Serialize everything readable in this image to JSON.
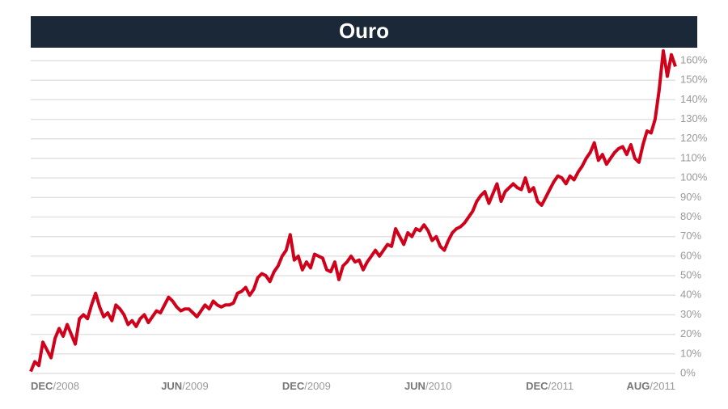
{
  "chart_data": {
    "type": "line",
    "title": "Ouro",
    "series": [
      {
        "color": "#d0021b",
        "values": [
          1,
          6,
          4,
          16,
          12,
          8,
          18,
          23,
          19,
          25,
          20,
          15,
          28,
          30,
          28,
          35,
          41,
          34,
          29,
          31,
          27,
          35,
          33,
          30,
          25,
          27,
          24,
          28,
          30,
          26,
          29,
          32,
          31,
          35,
          39,
          37,
          34,
          32,
          33,
          33,
          31,
          29,
          32,
          35,
          33,
          37,
          35,
          34,
          35,
          35,
          36,
          41,
          42,
          44,
          40,
          43,
          49,
          51,
          50,
          47,
          52,
          55,
          60,
          63,
          71,
          58,
          60,
          53,
          57,
          54,
          61,
          60,
          59,
          53,
          52,
          57,
          48,
          55,
          57,
          60,
          57,
          58,
          53,
          57,
          60,
          63,
          60,
          63,
          66,
          65,
          74,
          70,
          66,
          72,
          70,
          74,
          73,
          76,
          73,
          68,
          70,
          65,
          63,
          68,
          72,
          74,
          75,
          77,
          80,
          83,
          88,
          91,
          93,
          87,
          92,
          97,
          88,
          93,
          95,
          97,
          95,
          94,
          100,
          93,
          95,
          88,
          86,
          90,
          94,
          98,
          101,
          100,
          97,
          101,
          99,
          103,
          106,
          110,
          113,
          118,
          109,
          112,
          107,
          110,
          113,
          115,
          116,
          112,
          117,
          110,
          108,
          117,
          124,
          123,
          130,
          145,
          165,
          152,
          163,
          157
        ]
      }
    ],
    "xticks": [
      {
        "value": 0,
        "label": "DEC/2008"
      },
      {
        "value": 38,
        "label": "JUN/2009"
      },
      {
        "value": 68,
        "label": "DEC/2009"
      },
      {
        "value": 98,
        "label": "JUN/2010"
      },
      {
        "value": 128,
        "label": "DEC/2011"
      },
      {
        "value": 159,
        "label": "AUG/2011"
      }
    ],
    "ylim": [
      0,
      160
    ],
    "yticks": [
      {
        "value": 0,
        "label": "0%"
      },
      {
        "value": 10,
        "label": "10%"
      },
      {
        "value": 20,
        "label": "20%"
      },
      {
        "value": 30,
        "label": "30%"
      },
      {
        "value": 40,
        "label": "40%"
      },
      {
        "value": 50,
        "label": "50%"
      },
      {
        "value": 60,
        "label": "60%"
      },
      {
        "value": 70,
        "label": "70%"
      },
      {
        "value": 80,
        "label": "80%"
      },
      {
        "value": 90,
        "label": "90%"
      },
      {
        "value": 100,
        "label": "100%"
      },
      {
        "value": 110,
        "label": "110%"
      },
      {
        "value": 120,
        "label": "120%"
      },
      {
        "value": 130,
        "label": "130%"
      },
      {
        "value": 140,
        "label": "140%"
      },
      {
        "value": 150,
        "label": "150%"
      },
      {
        "value": 160,
        "label": "160%"
      }
    ],
    "grid": true
  }
}
